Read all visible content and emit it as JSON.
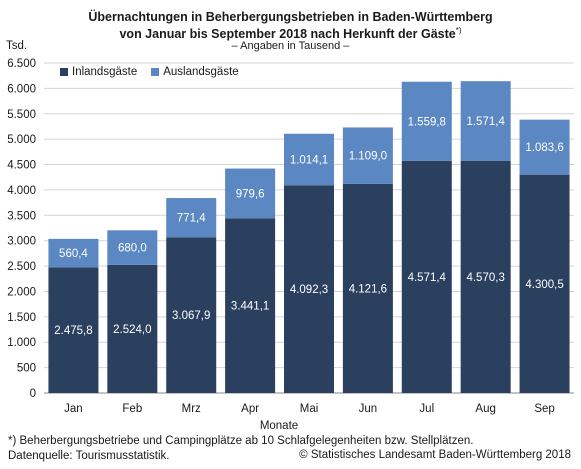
{
  "chart_data": {
    "type": "bar",
    "stacked": true,
    "title_line1": "Übernachtungen in Beherbergungsbetrieben in Baden-Württemberg",
    "title_line2": "von Januar bis September 2018 nach Herkunft der Gäste",
    "title_footnote_mark": "*)",
    "subtitle": "– Angaben in Tausend –",
    "ylabel": "Tsd.",
    "xlabel": "Monate",
    "ylim": [
      0,
      6500
    ],
    "yticks": [
      0,
      500,
      1000,
      1500,
      2000,
      2500,
      3000,
      3500,
      4000,
      4500,
      5000,
      5500,
      6000,
      6500
    ],
    "ytick_labels": [
      "0",
      "500",
      "1.000",
      "1.500",
      "2.000",
      "2.500",
      "3.000",
      "3.500",
      "4.000",
      "4.500",
      "5.000",
      "5.500",
      "6.000",
      "6.500"
    ],
    "grid": true,
    "legend_position": "top-left",
    "categories": [
      "Jan",
      "Feb",
      "Mrz",
      "Apr",
      "Mai",
      "Jun",
      "Jul",
      "Aug",
      "Sep"
    ],
    "series": [
      {
        "name": "Inlandsgäste",
        "color": "#2b3f5f",
        "values": [
          2475.8,
          2524.0,
          3067.9,
          3441.1,
          4092.3,
          4121.6,
          4571.4,
          4570.3,
          4300.5
        ],
        "labels": [
          "2.475,8",
          "2.524,0",
          "3.067,9",
          "3.441,1",
          "4.092,3",
          "4.121,6",
          "4.571,4",
          "4.570,3",
          "4.300,5"
        ]
      },
      {
        "name": "Auslandsgäste",
        "color": "#5b87c2",
        "values": [
          560.4,
          680.0,
          771.4,
          979.6,
          1014.1,
          1109.0,
          1559.8,
          1571.4,
          1083.6
        ],
        "labels": [
          "560,4",
          "680,0",
          "771,4",
          "979,6",
          "1.014,1",
          "1.109,0",
          "1.559,8",
          "1.571,4",
          "1.083,6"
        ]
      }
    ]
  },
  "footnote": "*) Beherbergungsbetriebe und Campingplätze ab 10 Schlafgelegenheiten bzw. Stellplätzen.",
  "source": "Datenquelle: Tourismusstatistik.",
  "copyright": "© Statistisches Landesamt Baden-Württemberg 2018"
}
